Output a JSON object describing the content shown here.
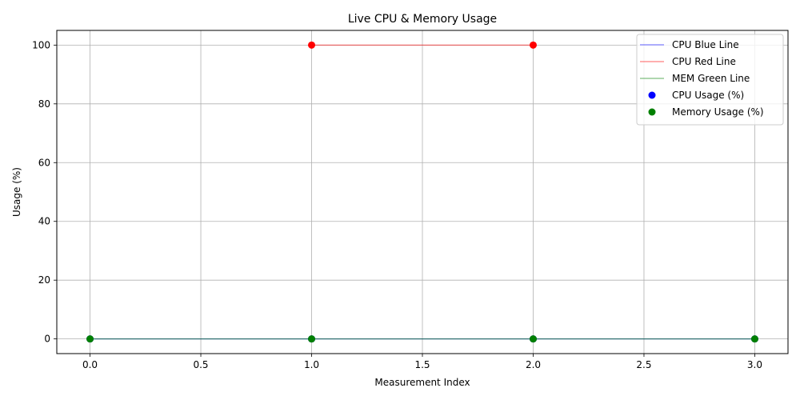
{
  "chart_data": {
    "type": "line",
    "title": "Live CPU & Memory Usage",
    "xlabel": "Measurement Index",
    "ylabel": "Usage (%)",
    "xlim": [
      -0.15,
      3.15
    ],
    "ylim": [
      -5,
      105
    ],
    "xticks": [
      0.0,
      0.5,
      1.0,
      1.5,
      2.0,
      2.5,
      3.0
    ],
    "xtick_labels": [
      "0.0",
      "0.5",
      "1.0",
      "1.5",
      "2.0",
      "2.5",
      "3.0"
    ],
    "yticks": [
      0,
      20,
      40,
      60,
      80,
      100
    ],
    "ytick_labels": [
      "0",
      "20",
      "40",
      "60",
      "80",
      "100"
    ],
    "grid": true,
    "legend_position": "top-right",
    "series": [
      {
        "name": "CPU Blue Line",
        "kind": "line",
        "color": "#0000ff",
        "opacity": 0.5,
        "x": [
          0,
          1,
          2,
          3
        ],
        "y": [
          0,
          0,
          0,
          0
        ]
      },
      {
        "name": "CPU Red Line",
        "kind": "line",
        "color": "#ff0000",
        "opacity": 0.5,
        "x": [
          1,
          2
        ],
        "y": [
          100,
          100
        ]
      },
      {
        "name": "MEM Green Line",
        "kind": "line",
        "color": "#008000",
        "opacity": 0.5,
        "x": [
          0,
          1,
          2,
          3
        ],
        "y": [
          0,
          0,
          0,
          0
        ]
      },
      {
        "name": "CPU Usage (%)",
        "kind": "scatter",
        "color": "#0000ff",
        "x": [
          0,
          1,
          2,
          3
        ],
        "y": [
          0,
          0,
          0,
          0
        ]
      },
      {
        "name": "Memory Usage (%)",
        "kind": "scatter",
        "color": "#008000",
        "x": [
          0,
          1,
          2,
          3
        ],
        "y": [
          0,
          0,
          0,
          0
        ]
      }
    ],
    "extra_points": [
      {
        "color": "#ff0000",
        "x": [
          1,
          2
        ],
        "y": [
          100,
          100
        ]
      }
    ]
  }
}
